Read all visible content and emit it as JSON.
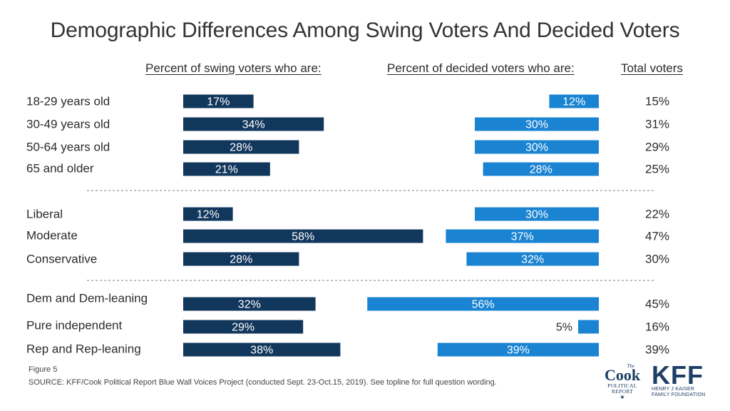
{
  "title": "Demographic Differences Among Swing Voters And Decided Voters",
  "headers": {
    "swing": "Percent of swing voters who are:",
    "decided": "Percent of decided voters who are:",
    "total": "Total voters"
  },
  "colors": {
    "swing": "#12375c",
    "decided": "#1b84d2",
    "separator": "#7f7f7f"
  },
  "chart_data": {
    "type": "bar",
    "categories": [
      "18-29 years old",
      "30-49 years old",
      "50-64 years old",
      "65 and older",
      "Liberal",
      "Moderate",
      "Conservative",
      "Dem and Dem-leaning",
      "Pure independent",
      "Rep and Rep-leaning"
    ],
    "groups": [
      [
        "18-29 years old",
        "30-49 years old",
        "50-64 years old",
        "65 and older"
      ],
      [
        "Liberal",
        "Moderate",
        "Conservative"
      ],
      [
        "Dem and Dem-leaning",
        "Pure independent",
        "Rep and Rep-leaning"
      ]
    ],
    "series": [
      {
        "name": "Percent of swing voters who are:",
        "values": [
          17,
          34,
          28,
          21,
          12,
          58,
          28,
          32,
          29,
          38
        ]
      },
      {
        "name": "Percent of decided voters who are:",
        "values": [
          12,
          30,
          30,
          28,
          30,
          37,
          32,
          56,
          5,
          39
        ]
      },
      {
        "name": "Total voters",
        "values": [
          15,
          31,
          29,
          25,
          22,
          47,
          30,
          45,
          16,
          39
        ]
      }
    ],
    "value_suffix": "%"
  },
  "footer": {
    "figure": "Figure 5",
    "source": "SOURCE: KFF/Cook Political Report Blue Wall Voices Project (conducted Sept. 23-Oct.15, 2019). See topline for full question wording."
  },
  "logos": {
    "cook": {
      "the": "The",
      "name": "Cook",
      "line1": "POLITICAL",
      "line2": "REPORT",
      "star": "★"
    },
    "kff": {
      "name": "KFF",
      "line1": "HENRY J KAISER",
      "line2": "FAMILY FOUNDATION"
    }
  }
}
